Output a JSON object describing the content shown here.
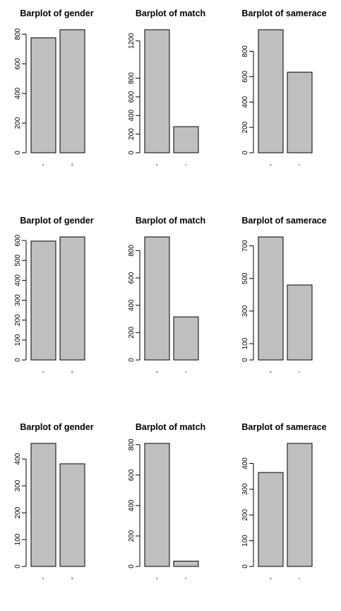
{
  "chart_data": [
    {
      "type": "bar",
      "title": "Barplot of gender",
      "categories": [
        "F",
        "M"
      ],
      "values": [
        775,
        830
      ],
      "yticks": [
        0,
        200,
        400,
        600,
        800
      ],
      "ylim": [
        0,
        830
      ]
    },
    {
      "type": "bar",
      "title": "Barplot of match",
      "categories": [
        "N",
        "Y"
      ],
      "values": [
        1320,
        280
      ],
      "yticks": [
        0,
        200,
        400,
        600,
        800,
        1200
      ],
      "ylim": [
        0,
        1320
      ]
    },
    {
      "type": "bar",
      "title": "Barplot of samerace",
      "categories": [
        "N",
        "Y"
      ],
      "values": [
        970,
        635
      ],
      "yticks": [
        0,
        200,
        400,
        600,
        800
      ],
      "ylim": [
        0,
        970
      ]
    },
    {
      "type": "bar",
      "title": "Barplot of gender",
      "categories": [
        "F",
        "M"
      ],
      "values": [
        597,
        618
      ],
      "yticks": [
        0,
        100,
        200,
        300,
        400,
        500,
        600
      ],
      "ylim": [
        0,
        618
      ]
    },
    {
      "type": "bar",
      "title": "Barplot of match",
      "categories": [
        "N",
        "Y"
      ],
      "values": [
        900,
        315
      ],
      "yticks": [
        0,
        200,
        400,
        600,
        800
      ],
      "ylim": [
        0,
        900
      ]
    },
    {
      "type": "bar",
      "title": "Barplot of samerace",
      "categories": [
        "N",
        "Y"
      ],
      "values": [
        755,
        460
      ],
      "yticks": [
        0,
        100,
        300,
        500,
        700
      ],
      "ylim": [
        0,
        755
      ]
    },
    {
      "type": "bar",
      "title": "Barplot of gender",
      "categories": [
        "F",
        "M"
      ],
      "values": [
        458,
        382
      ],
      "yticks": [
        0,
        100,
        200,
        300,
        400
      ],
      "ylim": [
        0,
        458
      ]
    },
    {
      "type": "bar",
      "title": "Barplot of match",
      "categories": [
        "N",
        "Y"
      ],
      "values": [
        808,
        35
      ],
      "yticks": [
        0,
        200,
        400,
        600,
        800
      ],
      "ylim": [
        0,
        808
      ]
    },
    {
      "type": "bar",
      "title": "Barplot of samerace",
      "categories": [
        "N",
        "Y"
      ],
      "values": [
        365,
        478
      ],
      "yticks": [
        0,
        100,
        200,
        300,
        400
      ],
      "ylim": [
        0,
        478
      ]
    }
  ]
}
